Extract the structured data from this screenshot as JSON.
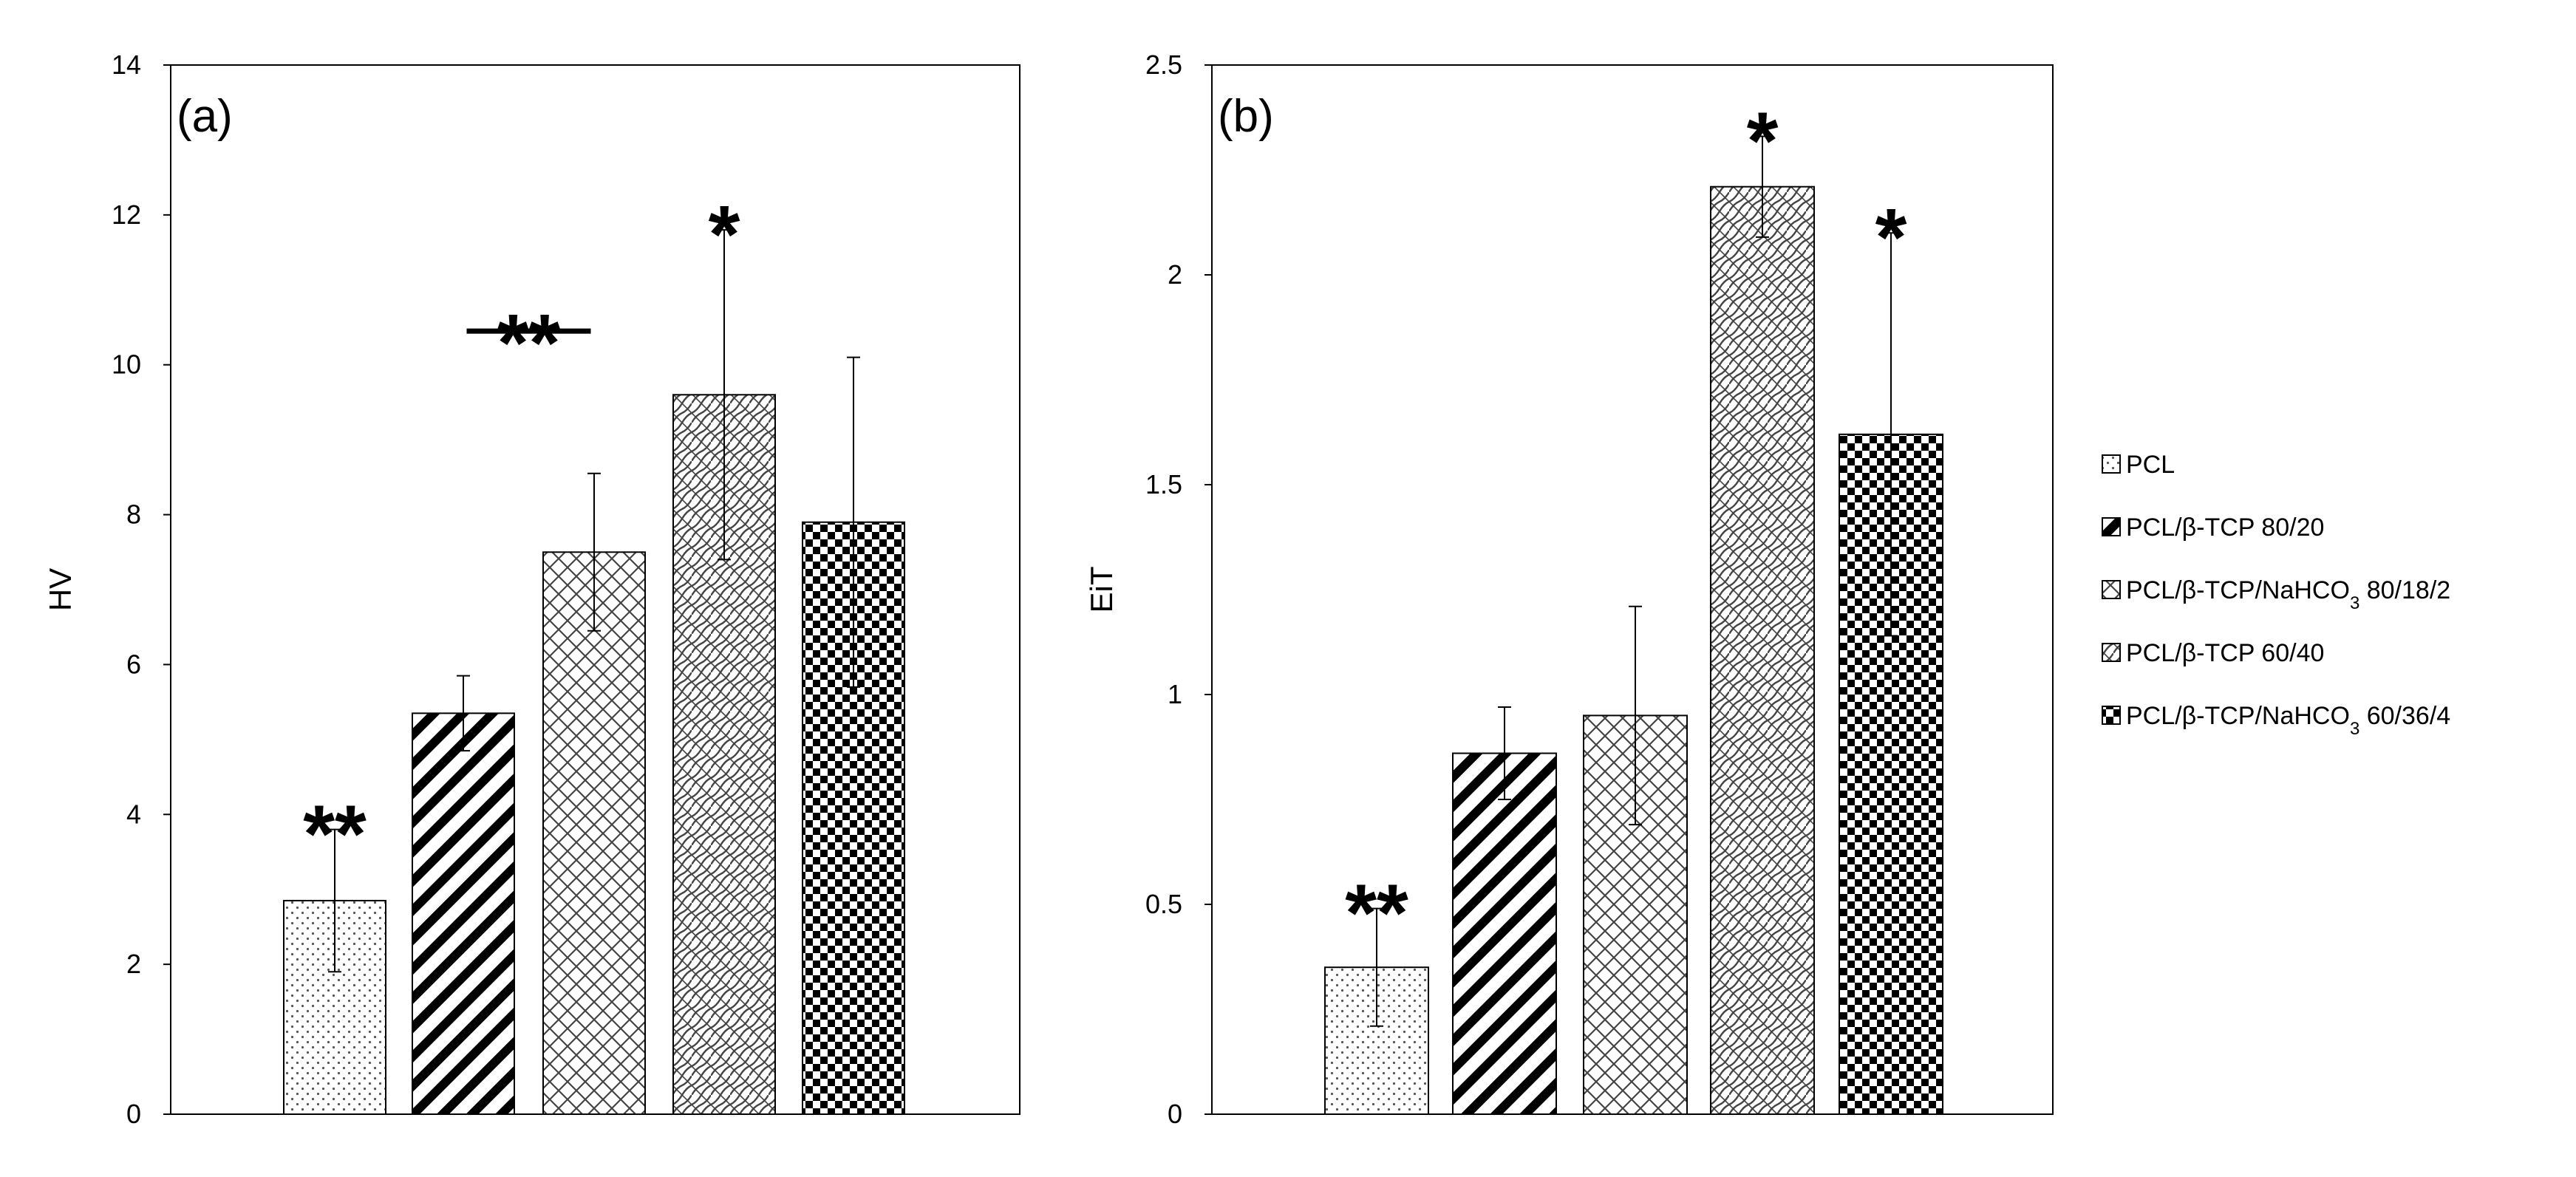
{
  "chart_data": [
    {
      "type": "bar",
      "panel_label": "(a)",
      "ylabel": "HV",
      "xlabel": "",
      "ylim": [
        0,
        14
      ],
      "yticks": [
        "0",
        "2",
        "4",
        "6",
        "8",
        "10",
        "12",
        "14"
      ],
      "ytick_values": [
        0,
        2,
        4,
        6,
        8,
        10,
        12,
        14
      ],
      "categories": [
        "PCL",
        "PCL/β-TCP 80/20",
        "PCL/β-TCP/NaHCO3 80/18/2",
        "PCL/β-TCP 60/40",
        "PCL/β-TCP/NaHCO3 60/36/4"
      ],
      "values": [
        2.85,
        5.35,
        7.5,
        9.6,
        7.9
      ],
      "errors": [
        0.95,
        0.5,
        1.05,
        2.2,
        2.2
      ],
      "annotations": [
        {
          "text": "**",
          "category_index": 0
        },
        {
          "text": "**",
          "category_index": 1.5,
          "bar_line": true
        },
        {
          "text": "*",
          "category_index": 3
        }
      ],
      "grid": false
    },
    {
      "type": "bar",
      "panel_label": "(b)",
      "ylabel": "EiT",
      "xlabel": "",
      "ylim": [
        0,
        2.5
      ],
      "yticks": [
        "0",
        "0.5",
        "1",
        "1.5",
        "2",
        "2.5"
      ],
      "ytick_values": [
        0,
        0.5,
        1,
        1.5,
        2,
        2.5
      ],
      "categories": [
        "PCL",
        "PCL/β-TCP 80/20",
        "PCL/β-TCP/NaHCO3 80/18/2",
        "PCL/β-TCP 60/40",
        "PCL/β-TCP/NaHCO3 60/36/4"
      ],
      "values": [
        0.35,
        0.86,
        0.95,
        2.21,
        1.62
      ],
      "errors": [
        0.14,
        0.11,
        0.26,
        0.12,
        0.48
      ],
      "annotations": [
        {
          "text": "**",
          "category_index": 0
        },
        {
          "text": "*",
          "category_index": 3
        },
        {
          "text": "*",
          "category_index": 4
        }
      ],
      "grid": false
    }
  ],
  "legend": {
    "position": "right",
    "items": [
      {
        "pre": "PCL",
        "sub": "",
        "post": ""
      },
      {
        "pre": "PCL/β-TCP 80/20",
        "sub": "",
        "post": ""
      },
      {
        "pre": "PCL/β-TCP/NaHCO",
        "sub": "3",
        "post": " 80/18/2"
      },
      {
        "pre": "PCL/β-TCP 60/40",
        "sub": "",
        "post": ""
      },
      {
        "pre": "PCL/β-TCP/NaHCO",
        "sub": "3",
        "post": " 60/36/4"
      }
    ]
  },
  "colors": {
    "ink": "#000000",
    "background": "#ffffff"
  },
  "patterns": [
    "dots",
    "diagonal-stripes",
    "crosshatch",
    "wave-diagonal",
    "checkerboard"
  ]
}
